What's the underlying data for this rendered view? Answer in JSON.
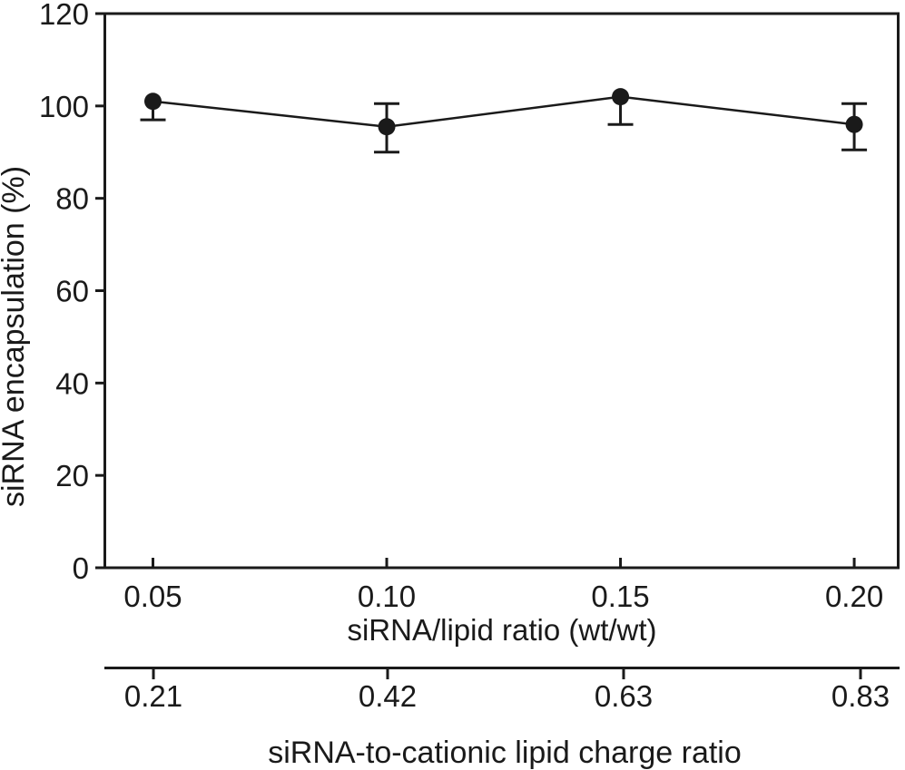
{
  "chart_data": {
    "type": "line",
    "title": "",
    "xlabel": "siRNA/lipid ratio (wt/wt)",
    "ylabel": "siRNA encapsulation (%)",
    "x": [
      0.05,
      0.1,
      0.15,
      0.2
    ],
    "x_tick_labels": [
      "0.05",
      "0.10",
      "0.15",
      "0.20"
    ],
    "xlim": [
      0.04,
      0.2095
    ],
    "ylim": [
      0,
      120
    ],
    "y_ticks": [
      0,
      20,
      40,
      60,
      80,
      100,
      120
    ],
    "y_tick_labels": [
      "0",
      "20",
      "40",
      "60",
      "80",
      "100",
      "120"
    ],
    "series": [
      {
        "name": "siRNA encapsulation",
        "values": [
          101,
          95.5,
          102,
          96
        ],
        "error_up": [
          0,
          5,
          0,
          4.5
        ],
        "error_down": [
          4,
          5.5,
          6,
          5.5
        ],
        "marker": "filled-circle",
        "line_style": "solid"
      }
    ],
    "secondary_x_axis": {
      "label": "siRNA-to-cationic lipid charge ratio",
      "tick_values": [
        0.21,
        0.42,
        0.63,
        0.83
      ],
      "tick_labels": [
        "0.21",
        "0.42",
        "0.63",
        "0.83"
      ]
    },
    "grid": false,
    "legend": false,
    "ink_color": "#1a1a1a",
    "background_color": "#ffffff"
  }
}
